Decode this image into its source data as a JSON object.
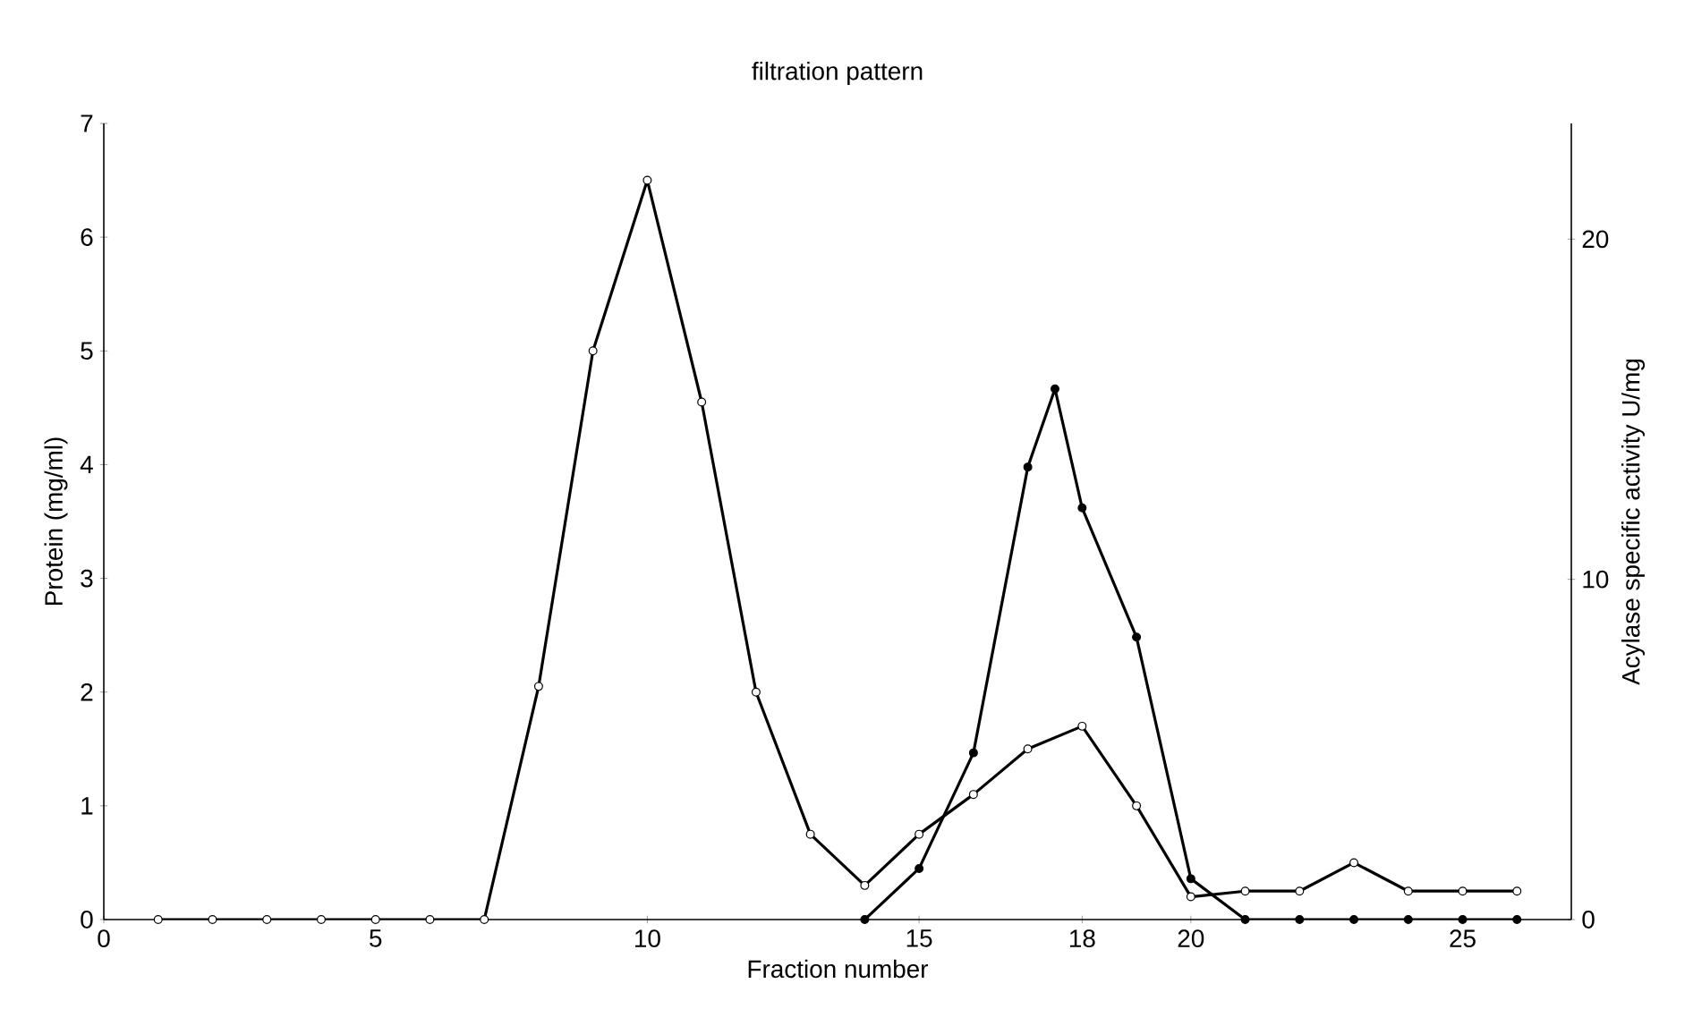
{
  "chart_data": {
    "type": "line",
    "title": "filtration pattern",
    "xlabel": "Fraction number",
    "ylabel": "Protein (mg/ml)",
    "y2label": "Acylase specific activity  U/mg",
    "xlim": [
      0,
      27
    ],
    "xticks": [
      0,
      5,
      10,
      15,
      18,
      20,
      25
    ],
    "ylim": [
      0,
      7
    ],
    "yticks": [
      0,
      1,
      2,
      3,
      4,
      5,
      6,
      7
    ],
    "y2lim": [
      0,
      23.4
    ],
    "y2ticks": [
      0,
      10,
      20
    ],
    "marker": "circle",
    "line_style": "solid",
    "series": [
      {
        "color": "#000000",
        "x": [
          1,
          2,
          3,
          4,
          5,
          6,
          7,
          8,
          9,
          10,
          11,
          12,
          13,
          14,
          15,
          16,
          17,
          18,
          19,
          20,
          21,
          22,
          23,
          24,
          25,
          26
        ],
        "values": [
          0,
          0,
          0,
          0,
          0,
          0,
          0,
          2.05,
          5.0,
          6.5,
          4.55,
          2.0,
          0.75,
          0.3,
          0.75,
          1.1,
          1.5,
          1.7,
          1.0,
          0.2,
          0.25,
          0.25,
          0.5,
          0.25,
          0.25,
          0.25
        ]
      },
      {
        "color": "#000000",
        "axis": "y2",
        "x": [
          14,
          15,
          16,
          17,
          17.5,
          18,
          19,
          20,
          21,
          22,
          23,
          24,
          25,
          26
        ],
        "values": [
          0,
          1.5,
          4.9,
          13.3,
          15.6,
          12.1,
          8.3,
          1.2,
          0,
          0,
          0,
          0,
          0,
          0
        ]
      }
    ]
  }
}
